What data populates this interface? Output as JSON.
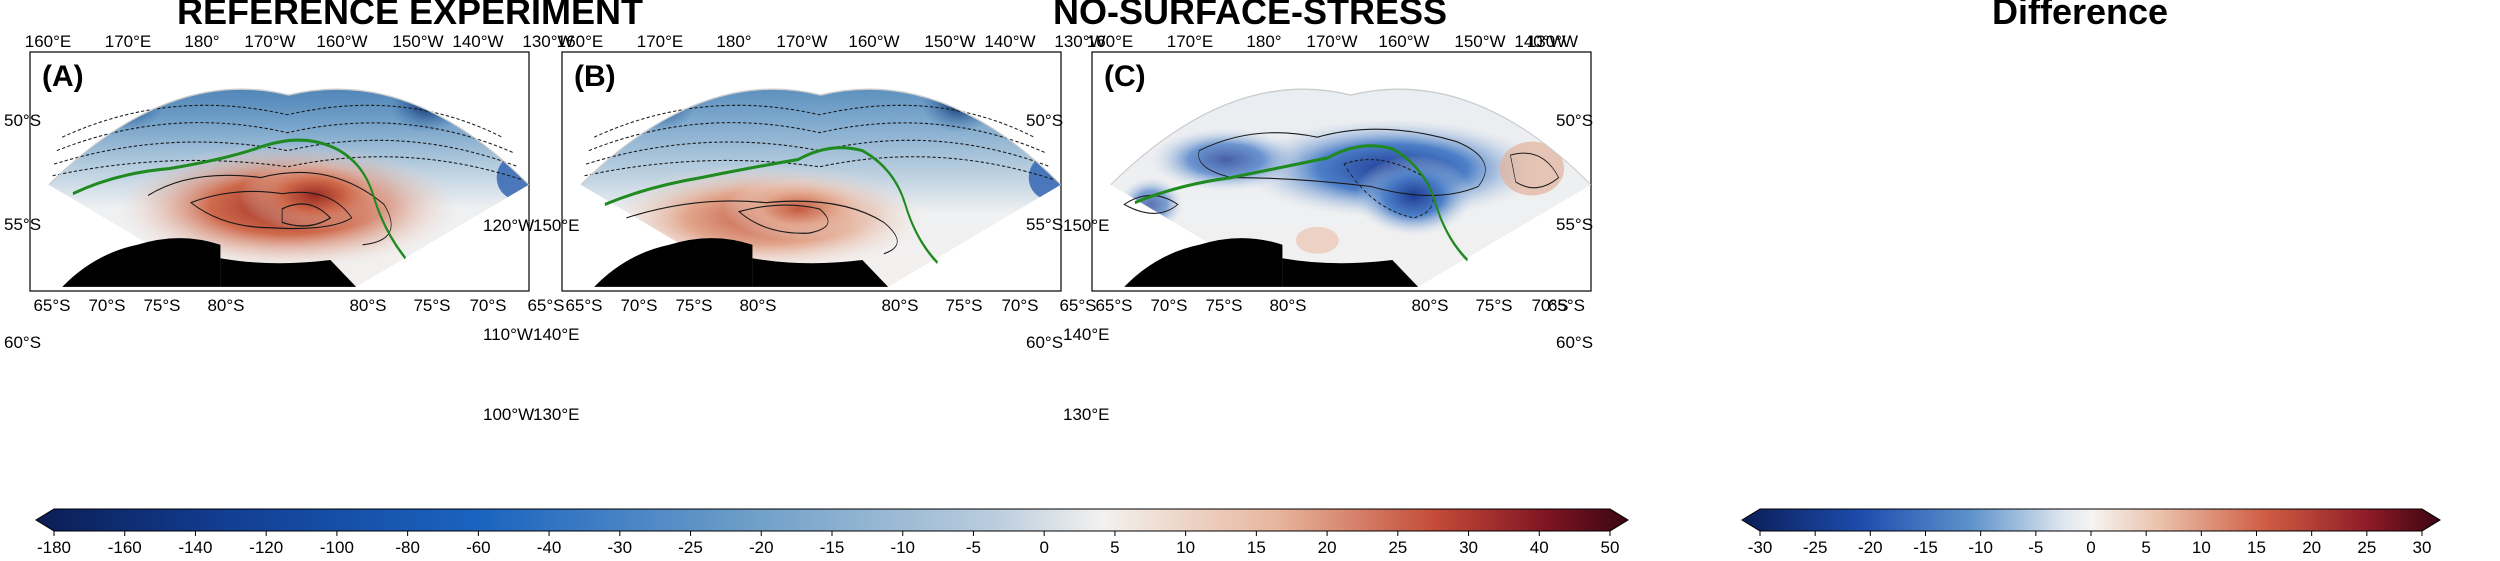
{
  "panels": [
    {
      "title": "REFERENCE EXPERIMENT",
      "label": "(A)",
      "lon_top": [
        "160°E",
        "170°E",
        "180°",
        "170°W",
        "160°W",
        "150°W",
        "140°W",
        "130°W"
      ],
      "lat_bottom": [
        "65°S",
        "70°S",
        "75°S",
        "80°S",
        "80°S",
        "75°S",
        "70°S",
        "65°S"
      ],
      "left_labels": [
        "50°S",
        "55°S",
        "60°S"
      ],
      "right_labels": [
        "120°W",
        "110°W",
        "100°W"
      ]
    },
    {
      "title": "NO-SURFACE-STRESS",
      "label": "(B)",
      "lon_top": [
        "160°E",
        "170°E",
        "180°",
        "170°W",
        "160°W",
        "150°W",
        "140°W",
        "130°W"
      ],
      "lat_bottom": [
        "65°S",
        "70°S",
        "75°S",
        "80°S",
        "80°S",
        "75°S",
        "70°S",
        "65°S"
      ],
      "left_labels": [
        "150°E",
        "140°E",
        "130°E"
      ],
      "right_labels": [
        "50°S",
        "55°S",
        "60°S"
      ]
    },
    {
      "title": "Difference",
      "label": "(C)",
      "lon_top": [
        "160°E",
        "170°E",
        "180°",
        "170°W",
        "160°W",
        "150°W",
        "140°W",
        "130°W"
      ],
      "lat_bottom": [
        "65°S",
        "70°S",
        "75°S",
        "80°S",
        "80°S",
        "75°S",
        "70°S",
        "65°S"
      ],
      "left_labels": [
        "150°E",
        "140°E",
        "130°E"
      ],
      "right_labels": [
        "50°S",
        "55°S",
        "60°S"
      ]
    }
  ],
  "colorbar_main": {
    "ticks": [
      "-180",
      "-160",
      "-140",
      "-120",
      "-100",
      "-80",
      "-60",
      "-40",
      "-30",
      "-25",
      "-20",
      "-15",
      "-10",
      "-5",
      "0",
      "5",
      "10",
      "15",
      "20",
      "25",
      "30",
      "40",
      "50"
    ],
    "values": [
      -180,
      -160,
      -140,
      -120,
      -100,
      -80,
      -60,
      -40,
      -30,
      -25,
      -20,
      -15,
      -10,
      -5,
      0,
      5,
      10,
      15,
      20,
      25,
      30,
      40,
      50
    ]
  },
  "colorbar_diff": {
    "ticks": [
      "-30",
      "-25",
      "-20",
      "-15",
      "-10",
      "-5",
      "0",
      "5",
      "10",
      "15",
      "20",
      "25",
      "30"
    ],
    "values": [
      -30,
      -25,
      -20,
      -15,
      -10,
      -5,
      0,
      5,
      10,
      15,
      20,
      25,
      30
    ]
  },
  "colors": {
    "front_line": "#1f8a1f",
    "land": "#000000",
    "neg_strong": "#1e3f8c",
    "pos_strong": "#6e0f16"
  }
}
